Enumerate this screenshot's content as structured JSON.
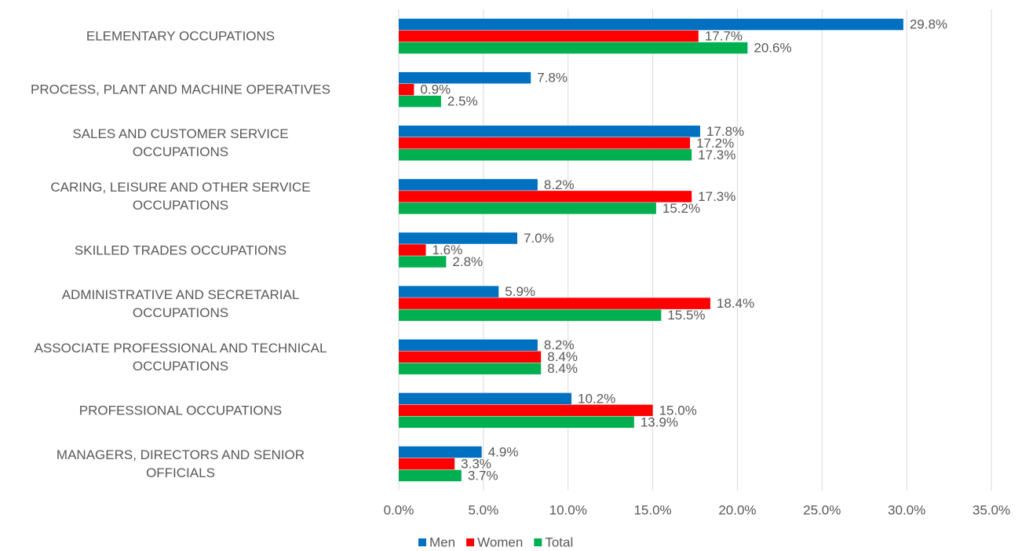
{
  "chart_data": {
    "type": "bar",
    "orientation": "horizontal",
    "categories": [
      "ELEMENTARY OCCUPATIONS",
      "PROCESS, PLANT AND MACHINE OPERATIVES",
      "SALES AND CUSTOMER SERVICE\nOCCUPATIONS",
      "CARING, LEISURE AND OTHER SERVICE\nOCCUPATIONS",
      "SKILLED TRADES OCCUPATIONS",
      "ADMINISTRATIVE AND SECRETARIAL\nOCCUPATIONS",
      "ASSOCIATE PROFESSIONAL AND TECHNICAL\nOCCUPATIONS",
      "PROFESSIONAL OCCUPATIONS",
      "MANAGERS, DIRECTORS AND SENIOR\nOFFICIALS"
    ],
    "series": [
      {
        "name": "Men",
        "color": "#0070c0",
        "values": [
          29.8,
          7.8,
          17.8,
          8.2,
          7.0,
          5.9,
          8.2,
          10.2,
          4.9
        ],
        "value_labels": [
          "29.8%",
          "7.8%",
          "17.8%",
          "8.2%",
          "7.0%",
          "5.9%",
          "8.2%",
          "10.2%",
          "4.9%"
        ]
      },
      {
        "name": "Women",
        "color": "#ff0000",
        "values": [
          17.7,
          0.9,
          17.2,
          17.3,
          1.6,
          18.4,
          8.4,
          15.0,
          3.3
        ],
        "value_labels": [
          "17.7%",
          "0.9%",
          "17.2%",
          "17.3%",
          "1.6%",
          "18.4%",
          "8.4%",
          "15.0%",
          "3.3%"
        ]
      },
      {
        "name": "Total",
        "color": "#00b050",
        "values": [
          20.6,
          2.5,
          17.3,
          15.2,
          2.8,
          15.5,
          8.4,
          13.9,
          3.7
        ],
        "value_labels": [
          "20.6%",
          "2.5%",
          "17.3%",
          "15.2%",
          "2.8%",
          "15.5%",
          "8.4%",
          "13.9%",
          "3.7%"
        ]
      }
    ],
    "xlim": [
      0,
      35
    ],
    "xticks": [
      {
        "value": 0,
        "label": "0.0%"
      },
      {
        "value": 5,
        "label": "5.0%"
      },
      {
        "value": 10,
        "label": "10.0%"
      },
      {
        "value": 15,
        "label": "15.0%"
      },
      {
        "value": 20,
        "label": "20.0%"
      },
      {
        "value": 25,
        "label": "25.0%"
      },
      {
        "value": 30,
        "label": "30.0%"
      },
      {
        "value": 35,
        "label": "35.0%"
      }
    ],
    "grid": true,
    "legend": "bottom"
  }
}
